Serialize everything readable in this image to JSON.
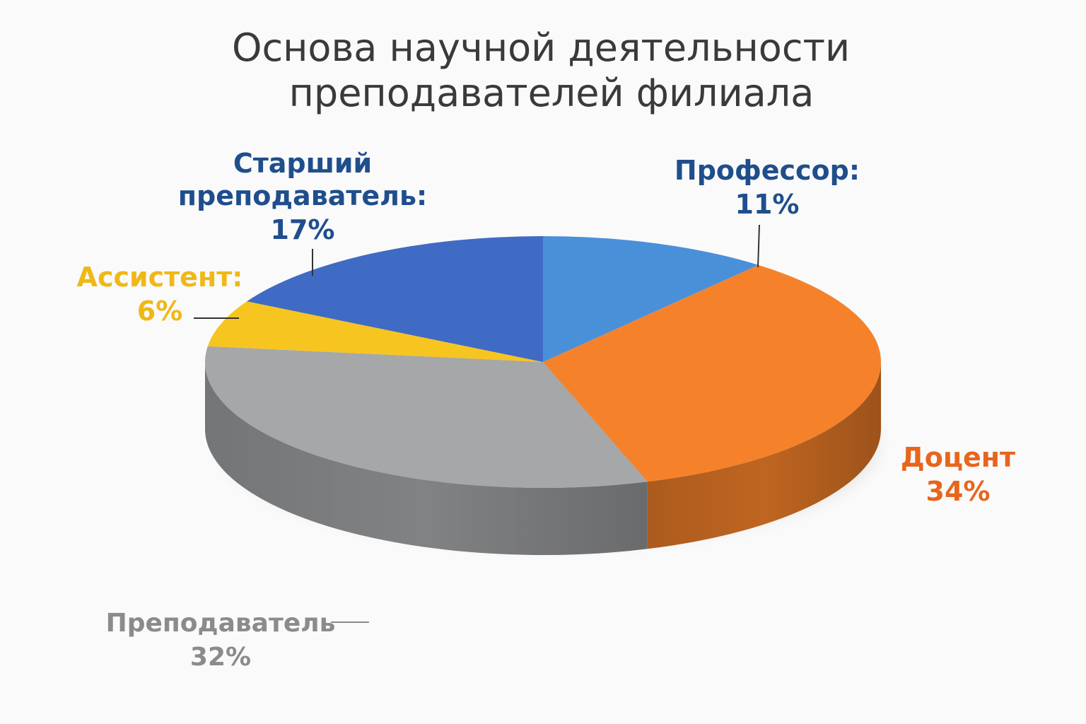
{
  "chart_data": {
    "type": "pie",
    "title": [
      "Основа научной деятельности",
      "преподавателей филиала"
    ],
    "slices": [
      {
        "name": "Профессор:",
        "value": 11,
        "value_label": "11%",
        "color": "#4a90d9",
        "label_color": "#1f4e8c"
      },
      {
        "name": "Доцент",
        "value": 34,
        "value_label": "34%",
        "color": "#f5822a",
        "label_color": "#e8651c"
      },
      {
        "name": "Преподаватель",
        "value": 32,
        "value_label": "32%",
        "color": "#a6a7a9",
        "label_color": "#8a8b8d"
      },
      {
        "name": "Ассистент:",
        "value": 6,
        "value_label": "6%",
        "color": "#f7c51f",
        "label_color": "#f0b816"
      },
      {
        "name": "Старший преподаватель:",
        "name_lines": [
          "Старший",
          "преподаватель:"
        ],
        "value": 17,
        "value_label": "17%",
        "color": "#3f6bc4",
        "label_color": "#1f4e8c"
      }
    ],
    "style": "3d",
    "legend": "none"
  }
}
